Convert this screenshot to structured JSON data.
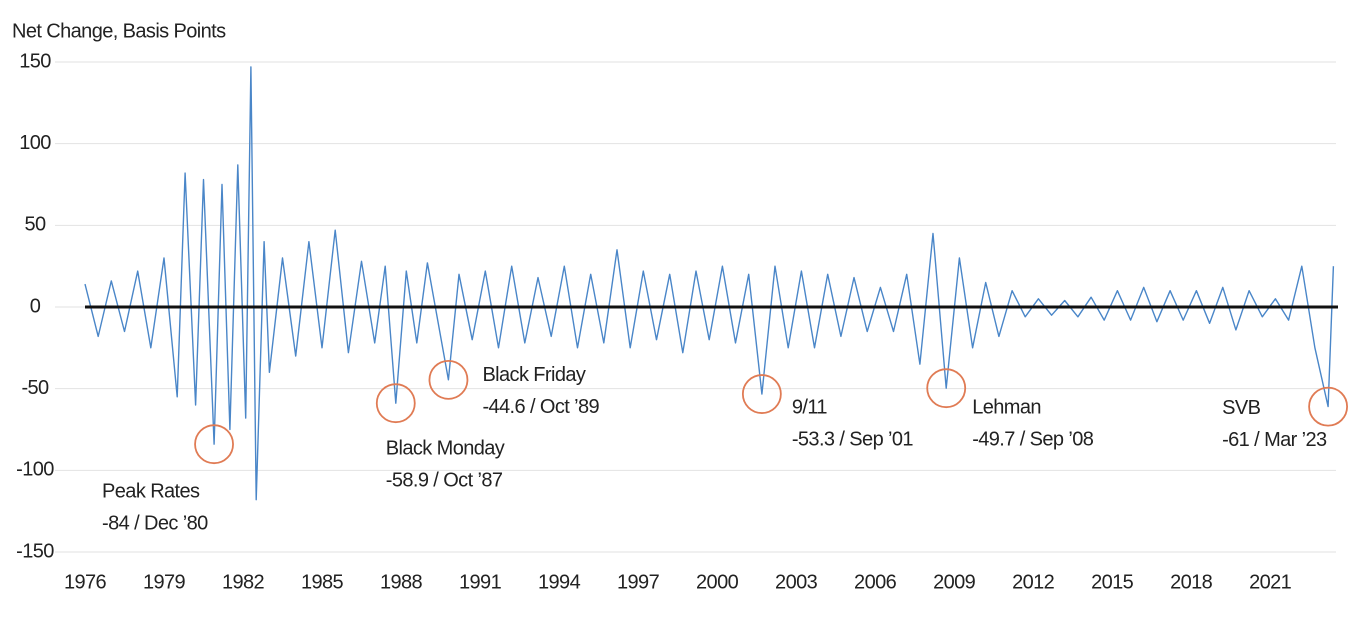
{
  "chart_data": {
    "type": "line",
    "y_label": "Net Change, Basis Points",
    "series": [
      {
        "color": "#4a86c8",
        "x": [
          1976.0,
          1976.5,
          1977.0,
          1977.5,
          1978.0,
          1978.5,
          1979.0,
          1979.5,
          1979.8,
          1980.2,
          1980.5,
          1980.9,
          1981.2,
          1981.5,
          1981.8,
          1982.1,
          1982.3,
          1982.5,
          1982.8,
          1983.0,
          1983.5,
          1984.0,
          1984.5,
          1985.0,
          1985.5,
          1986.0,
          1986.5,
          1987.0,
          1987.4,
          1987.8,
          1988.2,
          1988.6,
          1989.0,
          1989.8,
          1990.2,
          1990.7,
          1991.2,
          1991.7,
          1992.2,
          1992.7,
          1993.2,
          1993.7,
          1994.2,
          1994.7,
          1995.2,
          1995.7,
          1996.2,
          1996.7,
          1997.2,
          1997.7,
          1998.2,
          1998.7,
          1999.2,
          1999.7,
          2000.2,
          2000.7,
          2001.2,
          2001.7,
          2002.2,
          2002.7,
          2003.2,
          2003.7,
          2004.2,
          2004.7,
          2005.2,
          2005.7,
          2006.2,
          2006.7,
          2007.2,
          2007.7,
          2008.2,
          2008.7,
          2009.2,
          2009.7,
          2010.2,
          2010.7,
          2011.2,
          2011.7,
          2012.2,
          2012.7,
          2013.2,
          2013.7,
          2014.2,
          2014.7,
          2015.2,
          2015.7,
          2016.2,
          2016.7,
          2017.2,
          2017.7,
          2018.2,
          2018.7,
          2019.2,
          2019.7,
          2020.2,
          2020.7,
          2021.2,
          2021.7,
          2022.2,
          2022.7,
          2023.2,
          2023.4
        ],
        "values": [
          14,
          -18,
          16,
          -15,
          22,
          -25,
          30,
          -55,
          82,
          -60,
          78,
          -84,
          75,
          -75,
          87,
          -68,
          147,
          -118,
          40,
          -40,
          30,
          -30,
          40,
          -25,
          47,
          -28,
          28,
          -22,
          25,
          -58.9,
          22,
          -22,
          27,
          -44.6,
          20,
          -20,
          22,
          -25,
          25,
          -22,
          18,
          -18,
          25,
          -25,
          20,
          -22,
          35,
          -25,
          22,
          -20,
          20,
          -28,
          22,
          -20,
          25,
          -22,
          20,
          -53.3,
          25,
          -25,
          22,
          -25,
          20,
          -18,
          18,
          -15,
          12,
          -15,
          20,
          -35,
          45,
          -49.7,
          30,
          -25,
          15,
          -18,
          10,
          -6,
          5,
          -5,
          4,
          -6,
          6,
          -8,
          10,
          -8,
          12,
          -9,
          10,
          -8,
          10,
          -10,
          12,
          -14,
          10,
          -6,
          5,
          -8,
          25,
          -25,
          -61,
          25
        ]
      }
    ],
    "xlim": [
      1976,
      2023.5
    ],
    "xticks": [
      1976,
      1979,
      1982,
      1985,
      1988,
      1991,
      1994,
      1997,
      2000,
      2003,
      2006,
      2009,
      2012,
      2015,
      2018,
      2021
    ],
    "ylim": [
      -150,
      150
    ],
    "yticks": [
      -150,
      -100,
      -50,
      0,
      50,
      100,
      150
    ],
    "grid": true,
    "zero_line": true,
    "annotation_color": "#e07b54",
    "annotations": [
      {
        "label": "Peak Rates",
        "value": -84,
        "value_label": "-84 / Dec ’80",
        "x": 1980.9
      },
      {
        "label": "Black Monday",
        "value": -58.9,
        "value_label": "-58.9 / Oct ’87",
        "x": 1987.8
      },
      {
        "label": "Black Friday",
        "value": -44.6,
        "value_label": "-44.6 / Oct ’89",
        "x": 1989.8
      },
      {
        "label": "9/11",
        "value": -53.3,
        "value_label": "-53.3 / Sep ’01",
        "x": 2001.7
      },
      {
        "label": "Lehman",
        "value": -49.7,
        "value_label": "-49.7 / Sep ’08",
        "x": 2008.7
      },
      {
        "label": "SVB",
        "value": -61,
        "value_label": "-61 / Mar ’23",
        "x": 2023.2
      }
    ]
  }
}
